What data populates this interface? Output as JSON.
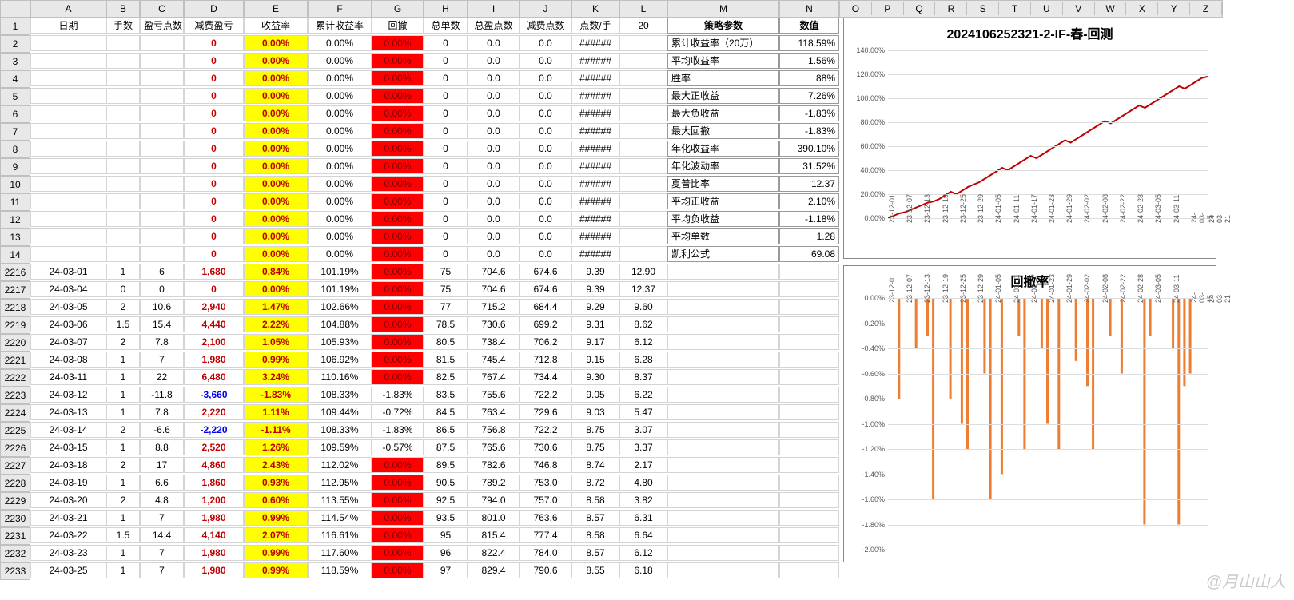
{
  "columns": [
    "",
    "A",
    "B",
    "C",
    "D",
    "E",
    "F",
    "G",
    "H",
    "I",
    "J",
    "K",
    "L",
    "M",
    "N"
  ],
  "headers": [
    "日期",
    "手数",
    "盈亏点数",
    "减费盈亏",
    "收益率",
    "累计收益率",
    "回撤",
    "总单数",
    "总盈点数",
    "减费点数",
    "点数/手",
    "20"
  ],
  "rows_top": [
    {
      "r": "2",
      "D": "0",
      "E": "0.00%",
      "F": "0.00%",
      "G": "0.00%",
      "H": "0",
      "I": "0.0",
      "J": "0.0",
      "K": "######"
    },
    {
      "r": "3",
      "D": "0",
      "E": "0.00%",
      "F": "0.00%",
      "G": "0.00%",
      "H": "0",
      "I": "0.0",
      "J": "0.0",
      "K": "######"
    },
    {
      "r": "4",
      "D": "0",
      "E": "0.00%",
      "F": "0.00%",
      "G": "0.00%",
      "H": "0",
      "I": "0.0",
      "J": "0.0",
      "K": "######"
    },
    {
      "r": "5",
      "D": "0",
      "E": "0.00%",
      "F": "0.00%",
      "G": "0.00%",
      "H": "0",
      "I": "0.0",
      "J": "0.0",
      "K": "######"
    },
    {
      "r": "6",
      "D": "0",
      "E": "0.00%",
      "F": "0.00%",
      "G": "0.00%",
      "H": "0",
      "I": "0.0",
      "J": "0.0",
      "K": "######"
    },
    {
      "r": "7",
      "D": "0",
      "E": "0.00%",
      "F": "0.00%",
      "G": "0.00%",
      "H": "0",
      "I": "0.0",
      "J": "0.0",
      "K": "######"
    },
    {
      "r": "8",
      "D": "0",
      "E": "0.00%",
      "F": "0.00%",
      "G": "0.00%",
      "H": "0",
      "I": "0.0",
      "J": "0.0",
      "K": "######"
    },
    {
      "r": "9",
      "D": "0",
      "E": "0.00%",
      "F": "0.00%",
      "G": "0.00%",
      "H": "0",
      "I": "0.0",
      "J": "0.0",
      "K": "######"
    },
    {
      "r": "10",
      "D": "0",
      "E": "0.00%",
      "F": "0.00%",
      "G": "0.00%",
      "H": "0",
      "I": "0.0",
      "J": "0.0",
      "K": "######"
    },
    {
      "r": "11",
      "D": "0",
      "E": "0.00%",
      "F": "0.00%",
      "G": "0.00%",
      "H": "0",
      "I": "0.0",
      "J": "0.0",
      "K": "######"
    },
    {
      "r": "12",
      "D": "0",
      "E": "0.00%",
      "F": "0.00%",
      "G": "0.00%",
      "H": "0",
      "I": "0.0",
      "J": "0.0",
      "K": "######"
    },
    {
      "r": "13",
      "D": "0",
      "E": "0.00%",
      "F": "0.00%",
      "G": "0.00%",
      "H": "0",
      "I": "0.0",
      "J": "0.0",
      "K": "######"
    },
    {
      "r": "14",
      "D": "0",
      "E": "0.00%",
      "F": "0.00%",
      "G": "0.00%",
      "H": "0",
      "I": "0.0",
      "J": "0.0",
      "K": "######"
    }
  ],
  "params": [
    [
      "策略参数",
      "数值"
    ],
    [
      "累计收益率（20万）",
      "118.59%"
    ],
    [
      "平均收益率",
      "1.56%"
    ],
    [
      "胜率",
      "88%"
    ],
    [
      "最大正收益",
      "7.26%"
    ],
    [
      "最大负收益",
      "-1.83%"
    ],
    [
      "最大回撤",
      "-1.83%"
    ],
    [
      "年化收益率",
      "390.10%"
    ],
    [
      "年化波动率",
      "31.52%"
    ],
    [
      "夏普比率",
      "12.37"
    ],
    [
      "平均正收益",
      "2.10%"
    ],
    [
      "平均负收益",
      "-1.18%"
    ],
    [
      "平均单数",
      "1.28"
    ],
    [
      "凯利公式",
      "69.08"
    ]
  ],
  "rows_bot": [
    {
      "r": "2216",
      "A": "24-03-01",
      "B": "1",
      "C": "6",
      "D": "1,680",
      "E": "0.84%",
      "F": "101.19%",
      "G": "0.00%",
      "H": "75",
      "I": "704.6",
      "J": "674.6",
      "K": "9.39",
      "L": "12.90",
      "neg": false,
      "gred": true
    },
    {
      "r": "2217",
      "A": "24-03-04",
      "B": "0",
      "C": "0",
      "D": "0",
      "E": "0.00%",
      "F": "101.19%",
      "G": "0.00%",
      "H": "75",
      "I": "704.6",
      "J": "674.6",
      "K": "9.39",
      "L": "12.37",
      "neg": false,
      "gred": true
    },
    {
      "r": "2218",
      "A": "24-03-05",
      "B": "2",
      "C": "10.6",
      "D": "2,940",
      "E": "1.47%",
      "F": "102.66%",
      "G": "0.00%",
      "H": "77",
      "I": "715.2",
      "J": "684.4",
      "K": "9.29",
      "L": "9.60",
      "neg": false,
      "gred": true
    },
    {
      "r": "2219",
      "A": "24-03-06",
      "B": "1.5",
      "C": "15.4",
      "D": "4,440",
      "E": "2.22%",
      "F": "104.88%",
      "G": "0.00%",
      "H": "78.5",
      "I": "730.6",
      "J": "699.2",
      "K": "9.31",
      "L": "8.62",
      "neg": false,
      "gred": true
    },
    {
      "r": "2220",
      "A": "24-03-07",
      "B": "2",
      "C": "7.8",
      "D": "2,100",
      "E": "1.05%",
      "F": "105.93%",
      "G": "0.00%",
      "H": "80.5",
      "I": "738.4",
      "J": "706.2",
      "K": "9.17",
      "L": "6.12",
      "neg": false,
      "gred": true
    },
    {
      "r": "2221",
      "A": "24-03-08",
      "B": "1",
      "C": "7",
      "D": "1,980",
      "E": "0.99%",
      "F": "106.92%",
      "G": "0.00%",
      "H": "81.5",
      "I": "745.4",
      "J": "712.8",
      "K": "9.15",
      "L": "6.28",
      "neg": false,
      "gred": true
    },
    {
      "r": "2222",
      "A": "24-03-11",
      "B": "1",
      "C": "22",
      "D": "6,480",
      "E": "3.24%",
      "F": "110.16%",
      "G": "0.00%",
      "H": "82.5",
      "I": "767.4",
      "J": "734.4",
      "K": "9.30",
      "L": "8.37",
      "neg": false,
      "gred": true
    },
    {
      "r": "2223",
      "A": "24-03-12",
      "B": "1",
      "C": "-11.8",
      "D": "-3,660",
      "E": "-1.83%",
      "F": "108.33%",
      "G": "-1.83%",
      "H": "83.5",
      "I": "755.6",
      "J": "722.2",
      "K": "9.05",
      "L": "6.22",
      "neg": true,
      "gred": false
    },
    {
      "r": "2224",
      "A": "24-03-13",
      "B": "1",
      "C": "7.8",
      "D": "2,220",
      "E": "1.11%",
      "F": "109.44%",
      "G": "-0.72%",
      "H": "84.5",
      "I": "763.4",
      "J": "729.6",
      "K": "9.03",
      "L": "5.47",
      "neg": false,
      "gred": false
    },
    {
      "r": "2225",
      "A": "24-03-14",
      "B": "2",
      "C": "-6.6",
      "D": "-2,220",
      "E": "-1.11%",
      "F": "108.33%",
      "G": "-1.83%",
      "H": "86.5",
      "I": "756.8",
      "J": "722.2",
      "K": "8.75",
      "L": "3.07",
      "neg": true,
      "gred": false
    },
    {
      "r": "2226",
      "A": "24-03-15",
      "B": "1",
      "C": "8.8",
      "D": "2,520",
      "E": "1.26%",
      "F": "109.59%",
      "G": "-0.57%",
      "H": "87.5",
      "I": "765.6",
      "J": "730.6",
      "K": "8.75",
      "L": "3.37",
      "neg": false,
      "gred": false
    },
    {
      "r": "2227",
      "A": "24-03-18",
      "B": "2",
      "C": "17",
      "D": "4,860",
      "E": "2.43%",
      "F": "112.02%",
      "G": "0.00%",
      "H": "89.5",
      "I": "782.6",
      "J": "746.8",
      "K": "8.74",
      "L": "2.17",
      "neg": false,
      "gred": true
    },
    {
      "r": "2228",
      "A": "24-03-19",
      "B": "1",
      "C": "6.6",
      "D": "1,860",
      "E": "0.93%",
      "F": "112.95%",
      "G": "0.00%",
      "H": "90.5",
      "I": "789.2",
      "J": "753.0",
      "K": "8.72",
      "L": "4.80",
      "neg": false,
      "gred": true
    },
    {
      "r": "2229",
      "A": "24-03-20",
      "B": "2",
      "C": "4.8",
      "D": "1,200",
      "E": "0.60%",
      "F": "113.55%",
      "G": "0.00%",
      "H": "92.5",
      "I": "794.0",
      "J": "757.0",
      "K": "8.58",
      "L": "3.82",
      "neg": false,
      "gred": true
    },
    {
      "r": "2230",
      "A": "24-03-21",
      "B": "1",
      "C": "7",
      "D": "1,980",
      "E": "0.99%",
      "F": "114.54%",
      "G": "0.00%",
      "H": "93.5",
      "I": "801.0",
      "J": "763.6",
      "K": "8.57",
      "L": "6.31",
      "neg": false,
      "gred": true
    },
    {
      "r": "2231",
      "A": "24-03-22",
      "B": "1.5",
      "C": "14.4",
      "D": "4,140",
      "E": "2.07%",
      "F": "116.61%",
      "G": "0.00%",
      "H": "95",
      "I": "815.4",
      "J": "777.4",
      "K": "8.58",
      "L": "6.64",
      "neg": false,
      "gred": true
    },
    {
      "r": "2232",
      "A": "24-03-23",
      "B": "1",
      "C": "7",
      "D": "1,980",
      "E": "0.99%",
      "F": "117.60%",
      "G": "0.00%",
      "H": "96",
      "I": "822.4",
      "J": "784.0",
      "K": "8.57",
      "L": "6.12",
      "neg": false,
      "gred": true
    },
    {
      "r": "2233",
      "A": "24-03-25",
      "B": "1",
      "C": "7",
      "D": "1,980",
      "E": "0.99%",
      "F": "118.59%",
      "G": "0.00%",
      "H": "97",
      "I": "829.4",
      "J": "790.6",
      "K": "8.55",
      "L": "6.18",
      "neg": false,
      "gred": true
    }
  ],
  "chart1": {
    "title": "2024106252321-2-IF-春-回测",
    "yticks": [
      "140.00%",
      "120.00%",
      "100.00%",
      "80.00%",
      "60.00%",
      "40.00%",
      "20.00%",
      "0.00%"
    ],
    "xticks": [
      "23-12-01",
      "23-12-07",
      "23-12-13",
      "23-12-19",
      "23-12-25",
      "23-12-29",
      "24-01-05",
      "24-01-11",
      "24-01-17",
      "24-01-23",
      "24-01-29",
      "24-02-02",
      "24-02-08",
      "24-02-22",
      "24-02-28",
      "24-03-05",
      "24-03-11",
      "24-03-15",
      "24-03-21"
    ],
    "line_color": "#c00000",
    "data": [
      0,
      2,
      4,
      5,
      7,
      9,
      11,
      13,
      14,
      16,
      19,
      22,
      20,
      23,
      26,
      28,
      30,
      33,
      36,
      39,
      42,
      40,
      43,
      46,
      49,
      52,
      50,
      53,
      56,
      59,
      62,
      65,
      63,
      66,
      69,
      72,
      75,
      78,
      81,
      79,
      82,
      85,
      88,
      91,
      94,
      92,
      95,
      98,
      101,
      104,
      107,
      110,
      108,
      111,
      114,
      117,
      118
    ]
  },
  "chart2": {
    "title": "回撤率",
    "yticks": [
      "0.00%",
      "-0.20%",
      "-0.40%",
      "-0.60%",
      "-0.80%",
      "-1.00%",
      "-1.20%",
      "-1.40%",
      "-1.60%",
      "-1.80%",
      "-2.00%"
    ],
    "xticks": [
      "23-12-01",
      "23-12-07",
      "23-12-13",
      "23-12-19",
      "23-12-25",
      "23-12-29",
      "24-01-05",
      "24-01-11",
      "24-01-17",
      "24-01-23",
      "24-01-29",
      "24-02-02",
      "24-02-08",
      "24-02-22",
      "24-02-28",
      "24-03-05",
      "24-03-11",
      "24-03-15",
      "24-03-21"
    ],
    "bar_color": "#ed7d31",
    "data": [
      0,
      0,
      -0.8,
      0,
      0,
      -0.4,
      0,
      -0.3,
      -1.6,
      0,
      0,
      -0.8,
      0,
      -1.0,
      -1.2,
      0,
      0,
      -0.6,
      -1.6,
      0,
      -1.4,
      0,
      0,
      -0.3,
      -1.2,
      0,
      0,
      -0.4,
      -1.0,
      0,
      -1.2,
      0,
      0,
      -0.5,
      0,
      -0.7,
      -1.2,
      0,
      0,
      -0.3,
      0,
      -0.6,
      0,
      0,
      0,
      -1.8,
      -0.3,
      0,
      0,
      0,
      -0.4,
      -1.8,
      -0.7,
      -0.6,
      0,
      0,
      0
    ]
  },
  "watermark": "@月山山人",
  "extra_cols": [
    "O",
    "P",
    "Q",
    "R",
    "S",
    "T",
    "U",
    "V",
    "W",
    "X",
    "Y",
    "Z"
  ]
}
